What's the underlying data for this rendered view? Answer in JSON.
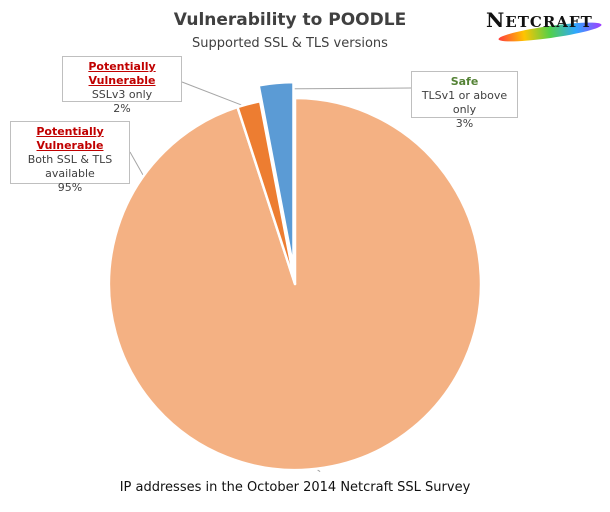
{
  "chart_data": {
    "type": "pie",
    "title": "Vulnerability to POODLE",
    "subtitle": "Supported SSL & TLS versions",
    "footer": "IP addresses in the October 2014 Netcraft SSL Survey",
    "slices": [
      {
        "status": "Potentially Vulnerable",
        "category": "Both SSL & TLS available",
        "value": 95,
        "label": "95%",
        "color": "#f4b183"
      },
      {
        "status": "Potentially Vulnerable",
        "category": "SSLv3 only",
        "value": 2,
        "label": "2%",
        "color": "#ed7d31"
      },
      {
        "status": "Safe",
        "category": "TLSv1 or above only",
        "value": 3,
        "label": "3%",
        "color": "#5b9bd5",
        "exploded": true
      }
    ]
  },
  "logo": {
    "text": "NETCRAFT",
    "colors": [
      "#ff3d3d",
      "#ffc400",
      "#52d04b",
      "#2ea7ff",
      "#a13dff"
    ]
  },
  "colors": {
    "vulnerable_heading": "#c00000",
    "safe_heading": "#548235",
    "callout_border": "#bfbfbf"
  }
}
